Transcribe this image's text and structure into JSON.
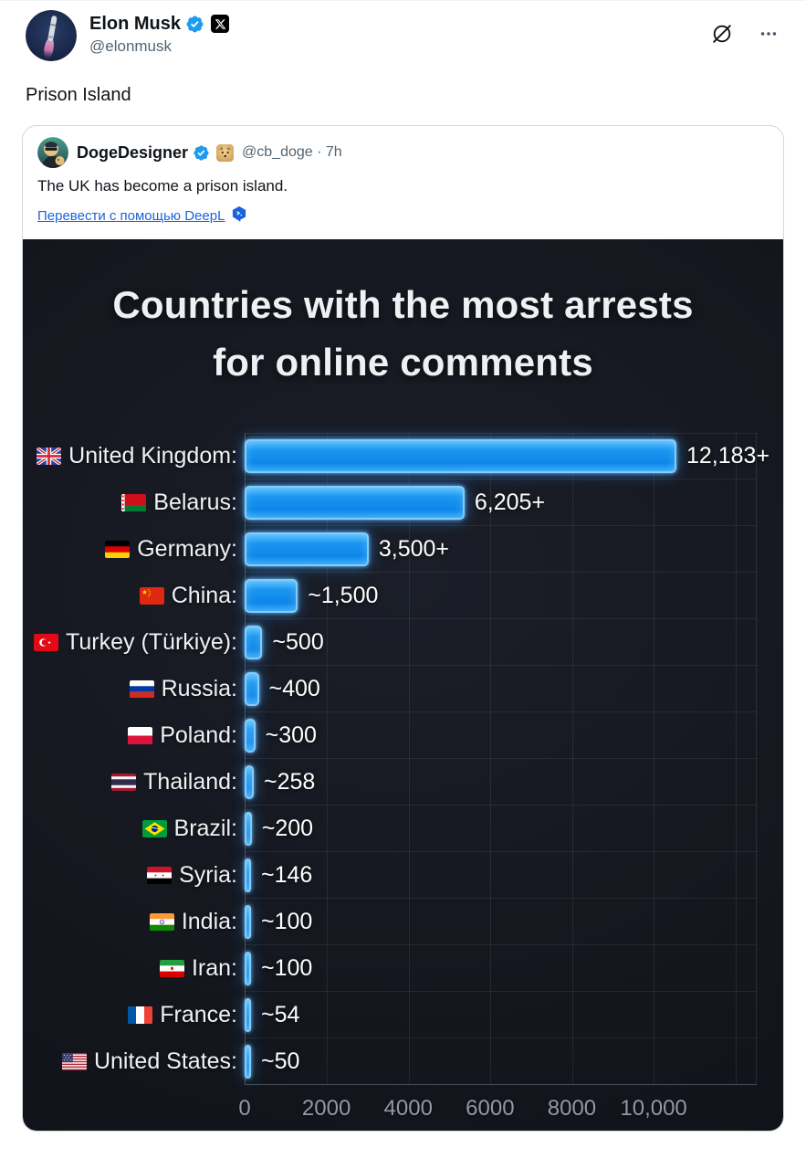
{
  "header": {
    "author_name": "Elon Musk",
    "author_handle": "@elonmusk",
    "accent_blue": "#1d9bf0"
  },
  "tweet_text": "Prison Island",
  "toolbar": {
    "grok_icon": "grok-slashed-circle",
    "more_icon": "ellipsis-three-dots"
  },
  "quote": {
    "author_name": "DogeDesigner",
    "author_handle": "@cb_doge",
    "separator": "·",
    "timestamp": "7h",
    "text": "The UK has become a prison island.",
    "translate_label": "Перевести с помощью DeepL",
    "translate_icon": "deepl-logo",
    "link_color": "#1a63dd"
  },
  "icons": {
    "verified_badge": "blue-verified-check-seal",
    "x_affiliate_badge": "black-square-x-logo",
    "doge_affiliate_badge": "doge-square-avatar",
    "grok": "slashed-circle",
    "more": "three-dots"
  },
  "chart_data": {
    "type": "bar",
    "orientation": "horizontal",
    "title": "Countries with the most arrests for online comments",
    "title_line1": "Countries with the most arrests",
    "title_line2": "for online comments",
    "background": "#15171f",
    "bar_color": "#1793ee",
    "categories": [
      "United Kingdom",
      "Belarus",
      "Germany",
      "China",
      "Turkey (Türkiye)",
      "Russia",
      "Poland",
      "Thailand",
      "Brazil",
      "Syria",
      "India",
      "Iran",
      "France",
      "United States"
    ],
    "values": [
      12183,
      6205,
      3500,
      1500,
      500,
      400,
      300,
      258,
      200,
      146,
      100,
      100,
      54,
      50
    ],
    "rows": [
      {
        "label": "United Kingdom:",
        "flag": "united-kingdom",
        "value": 12183,
        "value_label": "12,183+"
      },
      {
        "label": "Belarus:",
        "flag": "belarus",
        "value": 6205,
        "value_label": "6,205+"
      },
      {
        "label": "Germany:",
        "flag": "germany",
        "value": 3500,
        "value_label": "3,500+"
      },
      {
        "label": "China:",
        "flag": "china",
        "value": 1500,
        "value_label": "~1,500"
      },
      {
        "label": "Turkey (Türkiye):",
        "flag": "turkey",
        "value": 500,
        "value_label": "~500"
      },
      {
        "label": "Russia:",
        "flag": "russia",
        "value": 400,
        "value_label": "~400"
      },
      {
        "label": "Poland:",
        "flag": "poland",
        "value": 300,
        "value_label": "~300"
      },
      {
        "label": "Thailand:",
        "flag": "thailand",
        "value": 258,
        "value_label": "~258"
      },
      {
        "label": "Brazil:",
        "flag": "brazil",
        "value": 200,
        "value_label": "~200"
      },
      {
        "label": "Syria:",
        "flag": "syria",
        "value": 146,
        "value_label": "~146"
      },
      {
        "label": "India:",
        "flag": "india",
        "value": 100,
        "value_label": "~100"
      },
      {
        "label": "Iran:",
        "flag": "iran",
        "value": 100,
        "value_label": "~100"
      },
      {
        "label": "France:",
        "flag": "france",
        "value": 54,
        "value_label": "~54"
      },
      {
        "label": "United States:",
        "flag": "united-states",
        "value": 50,
        "value_label": "~50"
      }
    ],
    "x_ticks": [
      {
        "label": "0",
        "value": 0
      },
      {
        "label": "2000",
        "value": 2000
      },
      {
        "label": "4000",
        "value": 4000
      },
      {
        "label": "6000",
        "value": 6000
      },
      {
        "label": "8000",
        "value": 8000
      },
      {
        "label": "10,000",
        "value": 10000
      }
    ],
    "layout": {
      "x_max": 12520,
      "bar_max": 14450,
      "gridlines": [
        2000,
        4000,
        6000,
        8000,
        10000,
        12000
      ],
      "grid": true,
      "legend": false
    }
  }
}
